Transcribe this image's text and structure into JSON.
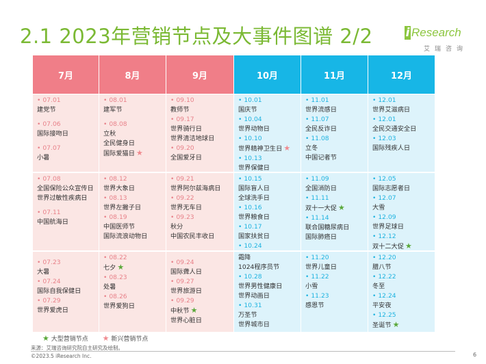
{
  "title": "2.1 2023年营销节点及大事件图谱 2/2",
  "logo": {
    "brand": "iResearch",
    "sub": "艾瑞咨询"
  },
  "colors": {
    "title": "#7bb934",
    "warm_header": "#f07e88",
    "cool_header": "#17b6e6",
    "warm_cell": "#fbe6e4",
    "cool_cell": "#ddf3fb",
    "big_star": "#5aa83a",
    "new_star": "#f08a8f"
  },
  "months": [
    "7月",
    "8月",
    "9月",
    "10月",
    "11月",
    "12月"
  ],
  "rows": [
    [
      [
        [
          "•  07.01",
          "d"
        ],
        [
          "建党节",
          ""
        ],
        [
          "",
          ""
        ],
        [
          "•  07.06",
          "d"
        ],
        [
          "国际接吻日",
          ""
        ],
        [
          "",
          ""
        ],
        [
          "•  07.07",
          "d"
        ],
        [
          "小暑",
          ""
        ]
      ],
      [
        [
          "•  08.01",
          "d"
        ],
        [
          "建军节",
          ""
        ],
        [
          "",
          ""
        ],
        [
          "•  08.08",
          "d"
        ],
        [
          "立秋",
          ""
        ],
        [
          "全民健身日",
          ""
        ],
        [
          "国际爱猫日",
          "p"
        ]
      ],
      [
        [
          "•  09.10",
          "d"
        ],
        [
          "教师节",
          ""
        ],
        [
          "•  09.17",
          "d"
        ],
        [
          "世界骑行日",
          ""
        ],
        [
          "世界清洁地球日",
          ""
        ],
        [
          "•  09.20",
          "d"
        ],
        [
          "全国爱牙日",
          ""
        ]
      ],
      [
        [
          "•  10.01",
          "d"
        ],
        [
          "国庆节",
          ""
        ],
        [
          "•  10.04",
          "d"
        ],
        [
          "世界动物日",
          ""
        ],
        [
          "•  10.10",
          "d"
        ],
        [
          "世界精神卫生日",
          "p"
        ],
        [
          "•  10.13",
          "d"
        ],
        [
          "世界保健日",
          ""
        ]
      ],
      [
        [
          "•  11.01",
          "d"
        ],
        [
          "世界流感日",
          ""
        ],
        [
          "•  11.07",
          "d"
        ],
        [
          "全民反诈日",
          ""
        ],
        [
          "•  11.08",
          "d"
        ],
        [
          "立冬",
          ""
        ],
        [
          "中国记者节",
          ""
        ]
      ],
      [
        [
          "•  12.01",
          "d"
        ],
        [
          "世界艾滋病日",
          ""
        ],
        [
          "•  12.01",
          "d"
        ],
        [
          "全民交通安全日",
          ""
        ],
        [
          "•  12.03",
          "d"
        ],
        [
          "国际残疾人日",
          ""
        ]
      ]
    ],
    [
      [
        [
          "•  07.08",
          "d"
        ],
        [
          "全国保险公众宣传日",
          ""
        ],
        [
          "世界过敏性疾病日",
          ""
        ],
        [
          "",
          ""
        ],
        [
          "•  07.11",
          "d"
        ],
        [
          "中国航海日",
          ""
        ]
      ],
      [
        [
          "•  08.12",
          "d"
        ],
        [
          "世界大象日",
          ""
        ],
        [
          "•  08.13",
          "d"
        ],
        [
          "世界左撇子日",
          ""
        ],
        [
          "•  08.19",
          "d"
        ],
        [
          "中国医师节",
          ""
        ],
        [
          "国际流浪动物日",
          ""
        ]
      ],
      [
        [
          "•  09.21",
          "d"
        ],
        [
          "世界阿尔兹海病日",
          ""
        ],
        [
          "•  09.22",
          "d"
        ],
        [
          "世界无车日",
          ""
        ],
        [
          "•  09.23",
          "d"
        ],
        [
          "秋分",
          ""
        ],
        [
          "中国农民丰收日",
          ""
        ]
      ],
      [
        [
          "•  10.15",
          "d"
        ],
        [
          "国际盲人日",
          ""
        ],
        [
          "全球洗手日",
          ""
        ],
        [
          "•  10.16",
          "d"
        ],
        [
          "世界粮食日",
          ""
        ],
        [
          "•  10.17",
          "d"
        ],
        [
          "国家扶贫日",
          ""
        ],
        [
          "•  10.24",
          "d"
        ]
      ],
      [
        [
          "•  11.09",
          "d"
        ],
        [
          "全国消防日",
          ""
        ],
        [
          "•  11.11",
          "d"
        ],
        [
          "双十一大促",
          "g"
        ],
        [
          "•  11.14",
          "d"
        ],
        [
          "联合国糖尿病日",
          ""
        ],
        [
          "国际肺癌日",
          ""
        ]
      ],
      [
        [
          "•  12.05",
          "d"
        ],
        [
          "国际志愿者日",
          ""
        ],
        [
          "•  12.07",
          "d"
        ],
        [
          "大雪",
          ""
        ],
        [
          "•  12.09",
          "d"
        ],
        [
          "世界足球日",
          ""
        ],
        [
          "•  12.12",
          "d"
        ],
        [
          "双十二大促",
          "g"
        ]
      ]
    ],
    [
      [
        [
          "",
          ""
        ],
        [
          "•  07.23",
          "d"
        ],
        [
          "大暑",
          ""
        ],
        [
          "•  07.24",
          "d"
        ],
        [
          "国际自我保健日",
          ""
        ],
        [
          "•  07.29",
          "d"
        ],
        [
          "世界爱虎日",
          ""
        ]
      ],
      [
        [
          "•  08.22",
          "d"
        ],
        [
          "七夕",
          "g"
        ],
        [
          "•  08.23",
          "d"
        ],
        [
          "处暑",
          ""
        ],
        [
          "•  08.26",
          "d"
        ],
        [
          "世界爱狗日",
          ""
        ]
      ],
      [
        [
          "",
          ""
        ],
        [
          "•  09.24",
          "d"
        ],
        [
          "国际聋人日",
          ""
        ],
        [
          "•  09.27",
          "d"
        ],
        [
          "世界旅游日",
          ""
        ],
        [
          "•  09.29",
          "d"
        ],
        [
          "中秋节",
          "g"
        ],
        [
          "世界心脏日",
          ""
        ]
      ],
      [
        [
          "霜降",
          ""
        ],
        [
          "1024程序员节",
          ""
        ],
        [
          "•  10.28",
          "d"
        ],
        [
          "世界男性健康日",
          ""
        ],
        [
          "世界动画日",
          ""
        ],
        [
          "•  10.31",
          "d"
        ],
        [
          "万圣节",
          ""
        ],
        [
          "世界城市日",
          ""
        ]
      ],
      [
        [
          "•  11.20",
          "d"
        ],
        [
          "世界儿童日",
          ""
        ],
        [
          "•  11.22",
          "d"
        ],
        [
          "小雪",
          ""
        ],
        [
          "•  11.23",
          "d"
        ],
        [
          "感恩节",
          ""
        ]
      ],
      [
        [
          "•  12.20",
          "d"
        ],
        [
          "腊八节",
          ""
        ],
        [
          "•  12.22",
          "d"
        ],
        [
          "冬至",
          ""
        ],
        [
          "•  12.24",
          "d"
        ],
        [
          "平安夜",
          ""
        ],
        [
          "•  12.25",
          "d"
        ],
        [
          "圣诞节",
          "g"
        ]
      ]
    ]
  ],
  "legend": {
    "big": "大型营销节点",
    "new": "新兴营销节点"
  },
  "source": "来源：艾瑞咨询研究院自主研究及绘制。",
  "copyright": "©2023.5 iResearch Inc.",
  "page": "6"
}
